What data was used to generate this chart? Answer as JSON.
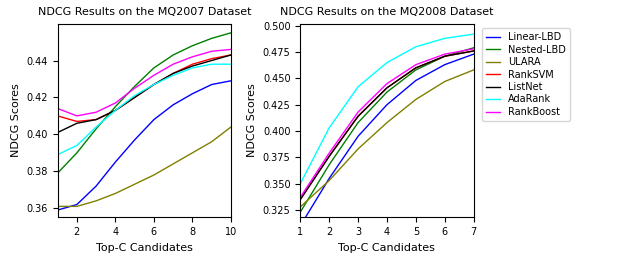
{
  "title1": "NDCG Results on the MQ2007 Dataset",
  "title2": "NDCG Results on the MQ2008 Dataset",
  "xlabel": "Top-C Candidates",
  "ylabel": "NDCG Scores",
  "legend_labels": [
    "Linear-LBD",
    "Nested-LBD",
    "ULARA",
    "RankSVM",
    "ListNet",
    "AdaRank",
    "RankBoost"
  ],
  "colors": [
    "blue",
    "green",
    "#808000",
    "red",
    "black",
    "cyan",
    "magenta"
  ],
  "mq2007": {
    "x": [
      1,
      2,
      3,
      4,
      5,
      6,
      7,
      8,
      9,
      10
    ],
    "Linear-LBD": [
      0.359,
      0.362,
      0.372,
      0.385,
      0.397,
      0.408,
      0.416,
      0.422,
      0.427,
      0.429
    ],
    "Nested-LBD": [
      0.379,
      0.39,
      0.403,
      0.415,
      0.426,
      0.436,
      0.443,
      0.448,
      0.452,
      0.455
    ],
    "ULARA": [
      0.361,
      0.361,
      0.364,
      0.368,
      0.373,
      0.378,
      0.384,
      0.39,
      0.396,
      0.404
    ],
    "RankSVM": [
      0.41,
      0.407,
      0.408,
      0.413,
      0.42,
      0.427,
      0.433,
      0.438,
      0.441,
      0.443
    ],
    "ListNet": [
      0.401,
      0.406,
      0.408,
      0.413,
      0.42,
      0.427,
      0.433,
      0.437,
      0.44,
      0.443
    ],
    "AdaRank": [
      0.389,
      0.394,
      0.404,
      0.413,
      0.421,
      0.427,
      0.432,
      0.436,
      0.438,
      0.438
    ],
    "RankBoost": [
      0.414,
      0.41,
      0.412,
      0.417,
      0.425,
      0.432,
      0.438,
      0.442,
      0.445,
      0.446
    ]
  },
  "mq2008": {
    "x": [
      1,
      2,
      3,
      4,
      5,
      6,
      7
    ],
    "Linear-LBD": [
      0.31,
      0.355,
      0.395,
      0.425,
      0.448,
      0.463,
      0.473
    ],
    "Nested-LBD": [
      0.323,
      0.368,
      0.408,
      0.437,
      0.458,
      0.471,
      0.479
    ],
    "ULARA": [
      0.328,
      0.353,
      0.383,
      0.408,
      0.43,
      0.447,
      0.458
    ],
    "RankSVM": [
      0.335,
      0.376,
      0.414,
      0.441,
      0.46,
      0.471,
      0.476
    ],
    "ListNet": [
      0.335,
      0.376,
      0.414,
      0.441,
      0.46,
      0.471,
      0.476
    ],
    "AdaRank": [
      0.35,
      0.403,
      0.442,
      0.465,
      0.48,
      0.488,
      0.492
    ],
    "RankBoost": [
      0.337,
      0.379,
      0.418,
      0.445,
      0.463,
      0.473,
      0.478
    ]
  },
  "ylim1": [
    0.355,
    0.46
  ],
  "ylim2": [
    0.318,
    0.502
  ],
  "yticks1": [
    0.36,
    0.38,
    0.4,
    0.42,
    0.44
  ],
  "yticks2": [
    0.325,
    0.35,
    0.375,
    0.4,
    0.425,
    0.45,
    0.475,
    0.5
  ],
  "xticks1": [
    2,
    4,
    6,
    8,
    10
  ],
  "xticks2": [
    1,
    2,
    3,
    4,
    5,
    6,
    7
  ]
}
